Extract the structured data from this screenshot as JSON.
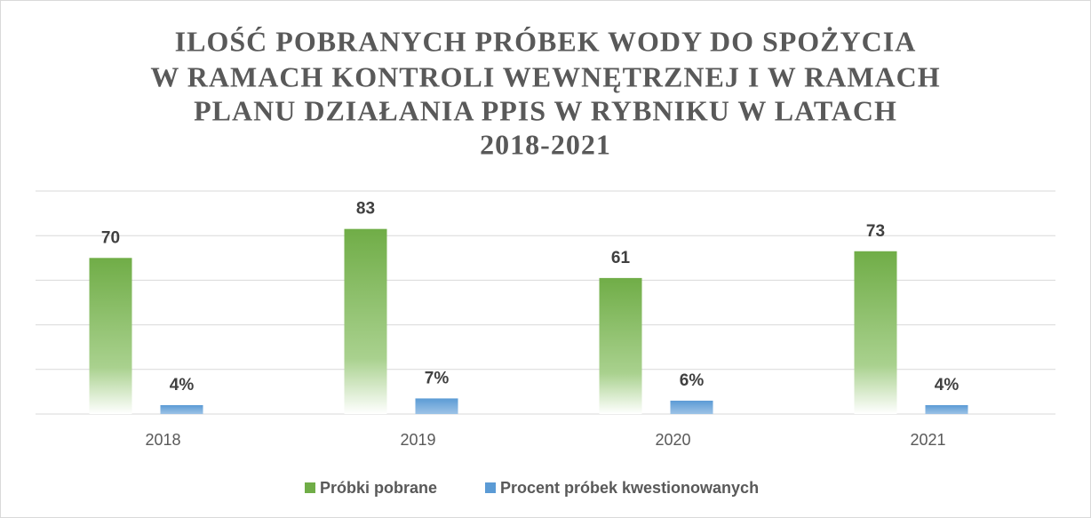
{
  "chart_data": {
    "type": "bar",
    "title": [
      "ILOŚĆ POBRANYCH PRÓBEK WODY DO SPOŻYCIA",
      "W RAMACH KONTROLI WEWNĘTRZNEJ I W RAMACH",
      "PLANU DZIAŁANIA PPIS  W RYBNIKU W LATACH",
      "2018-2021"
    ],
    "categories": [
      "2018",
      "2019",
      "2020",
      "2021"
    ],
    "series": [
      {
        "name": "Próbki pobrane",
        "color": "#70ad47",
        "values": [
          70,
          83,
          61,
          73
        ]
      },
      {
        "name": "Procent próbek kwestionowanych",
        "color": "#5b9bd5",
        "values": [
          4,
          7,
          6,
          4
        ],
        "value_labels": [
          "4%",
          "7%",
          "6%",
          "4%"
        ]
      }
    ],
    "ylim": [
      0,
      100
    ],
    "yticks": [
      0,
      20,
      40,
      60,
      80,
      100
    ],
    "grid": true,
    "legend": "bottom"
  }
}
